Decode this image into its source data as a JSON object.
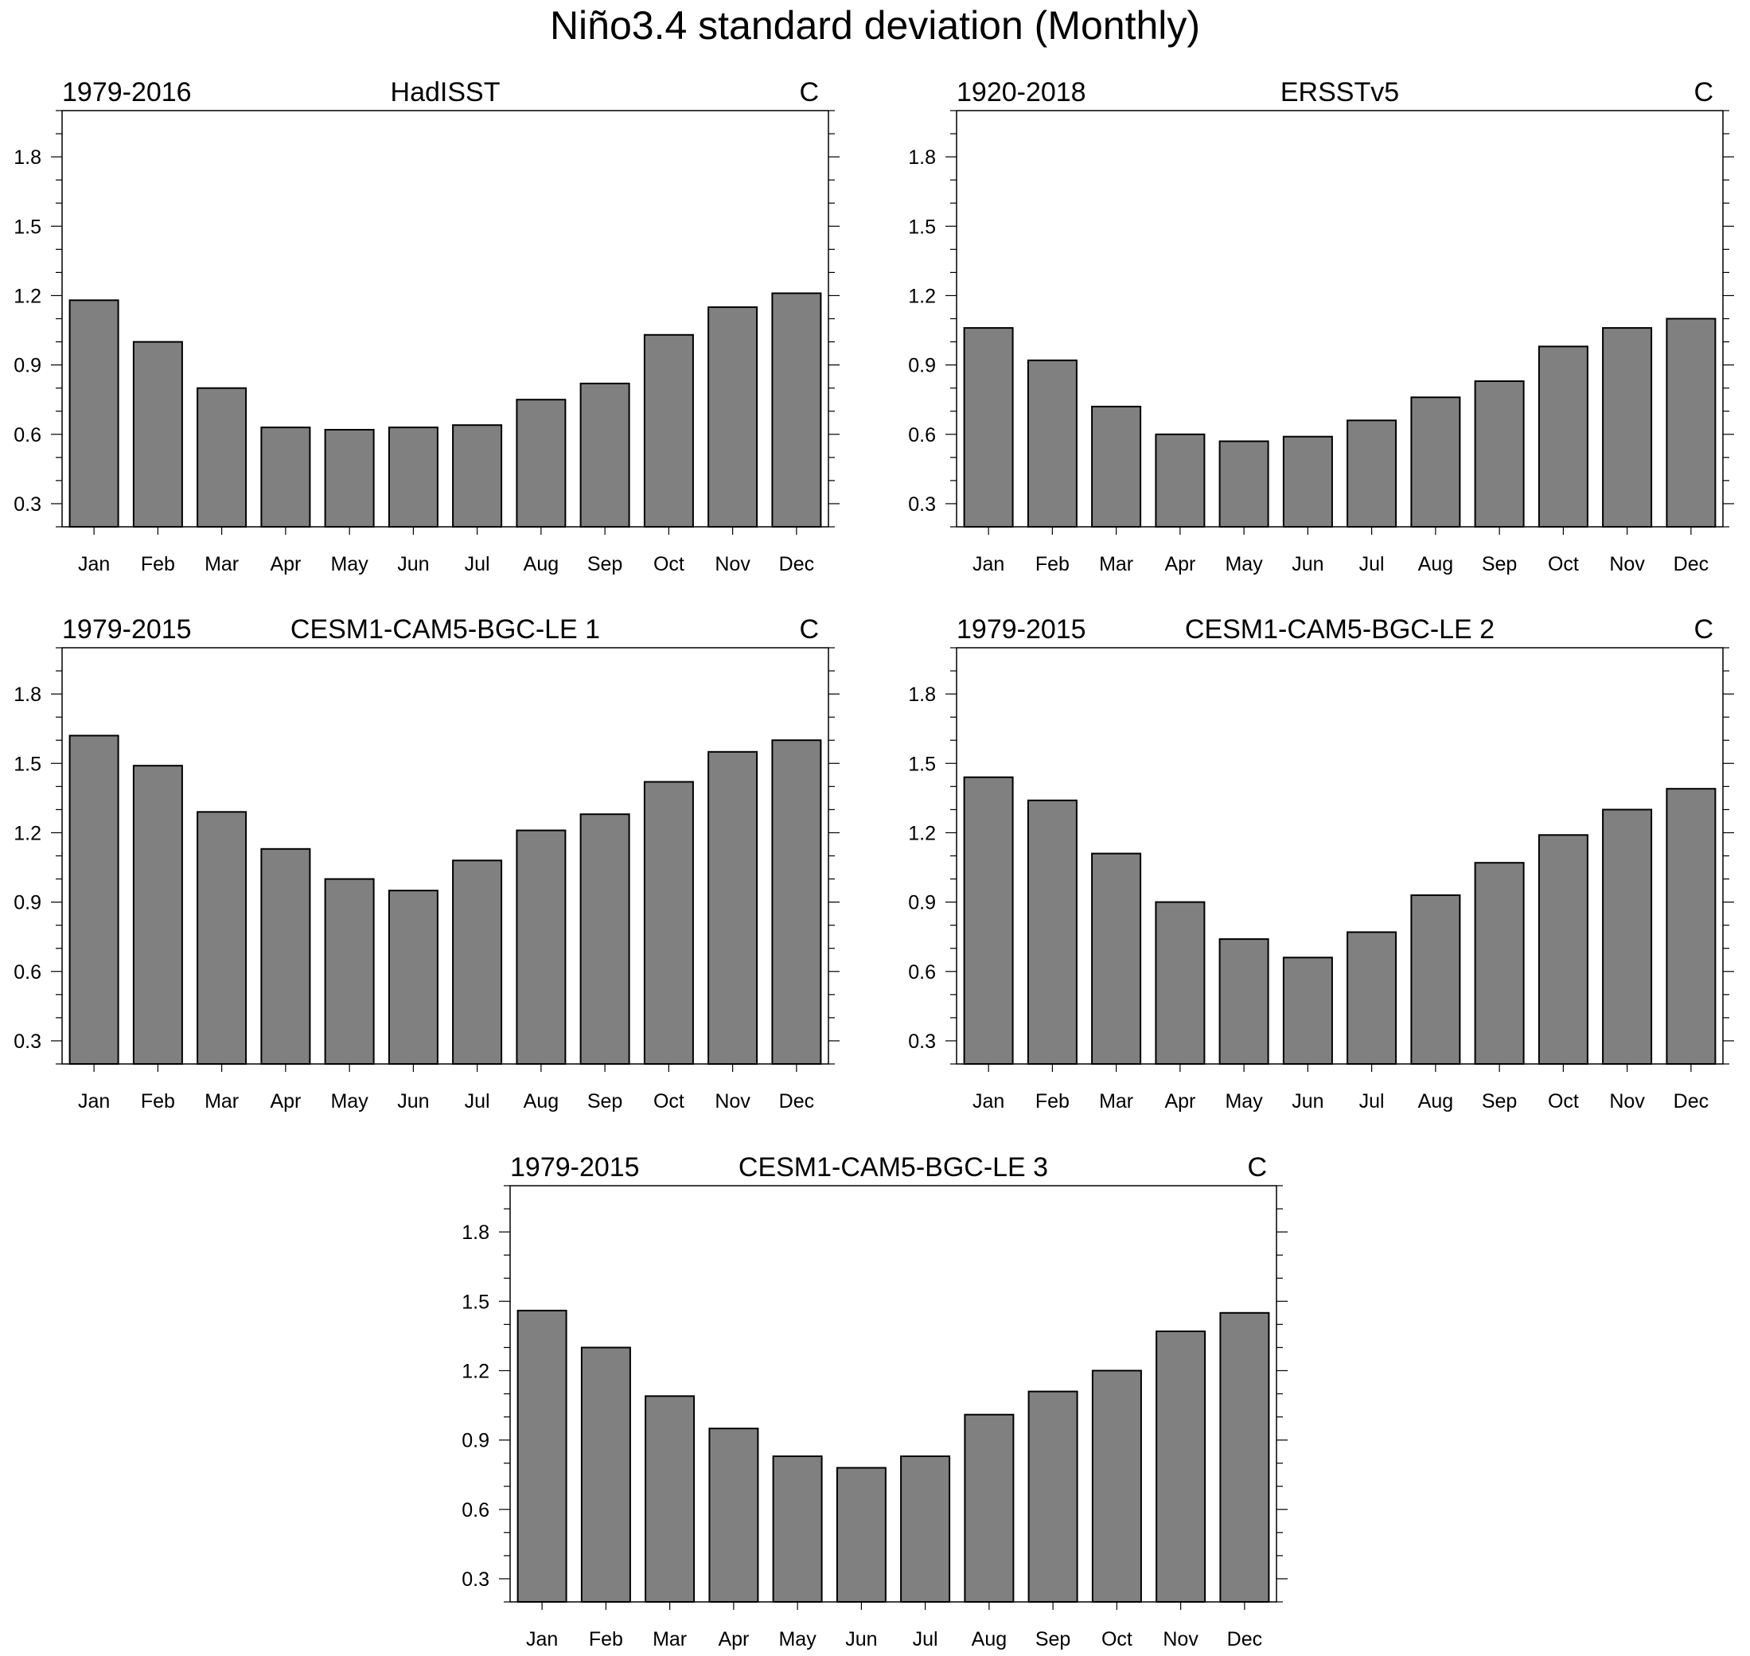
{
  "figure": {
    "title": "Niño3.4 standard deviation (Monthly)"
  },
  "style": {
    "bar_fill": "#808080",
    "bar_stroke": "#000000",
    "background": "#ffffff"
  },
  "chart_data": [
    {
      "type": "bar",
      "title": "HadISST",
      "period": "1979-2016",
      "units": "C",
      "categories": [
        "Jan",
        "Feb",
        "Mar",
        "Apr",
        "May",
        "Jun",
        "Jul",
        "Aug",
        "Sep",
        "Oct",
        "Nov",
        "Dec"
      ],
      "values": [
        1.18,
        1.0,
        0.8,
        0.63,
        0.62,
        0.63,
        0.64,
        0.75,
        0.82,
        1.03,
        1.15,
        1.21
      ],
      "ylim": [
        0.2,
        2.0
      ],
      "yticks": [
        0.3,
        0.6,
        0.9,
        1.2,
        1.5,
        1.8
      ],
      "grid": false
    },
    {
      "type": "bar",
      "title": "ERSSTv5",
      "period": "1920-2018",
      "units": "C",
      "categories": [
        "Jan",
        "Feb",
        "Mar",
        "Apr",
        "May",
        "Jun",
        "Jul",
        "Aug",
        "Sep",
        "Oct",
        "Nov",
        "Dec"
      ],
      "values": [
        1.06,
        0.92,
        0.72,
        0.6,
        0.57,
        0.59,
        0.66,
        0.76,
        0.83,
        0.98,
        1.06,
        1.1
      ],
      "ylim": [
        0.2,
        2.0
      ],
      "yticks": [
        0.3,
        0.6,
        0.9,
        1.2,
        1.5,
        1.8
      ],
      "grid": false
    },
    {
      "type": "bar",
      "title": "CESM1-CAM5-BGC-LE 1",
      "period": "1979-2015",
      "units": "C",
      "categories": [
        "Jan",
        "Feb",
        "Mar",
        "Apr",
        "May",
        "Jun",
        "Jul",
        "Aug",
        "Sep",
        "Oct",
        "Nov",
        "Dec"
      ],
      "values": [
        1.62,
        1.49,
        1.29,
        1.13,
        1.0,
        0.95,
        1.08,
        1.21,
        1.28,
        1.42,
        1.55,
        1.6
      ],
      "ylim": [
        0.2,
        2.0
      ],
      "yticks": [
        0.3,
        0.6,
        0.9,
        1.2,
        1.5,
        1.8
      ],
      "grid": false
    },
    {
      "type": "bar",
      "title": "CESM1-CAM5-BGC-LE 2",
      "period": "1979-2015",
      "units": "C",
      "categories": [
        "Jan",
        "Feb",
        "Mar",
        "Apr",
        "May",
        "Jun",
        "Jul",
        "Aug",
        "Sep",
        "Oct",
        "Nov",
        "Dec"
      ],
      "values": [
        1.44,
        1.34,
        1.11,
        0.9,
        0.74,
        0.66,
        0.77,
        0.93,
        1.07,
        1.19,
        1.3,
        1.39
      ],
      "ylim": [
        0.2,
        2.0
      ],
      "yticks": [
        0.3,
        0.6,
        0.9,
        1.2,
        1.5,
        1.8
      ],
      "grid": false
    },
    {
      "type": "bar",
      "title": "CESM1-CAM5-BGC-LE 3",
      "period": "1979-2015",
      "units": "C",
      "categories": [
        "Jan",
        "Feb",
        "Mar",
        "Apr",
        "May",
        "Jun",
        "Jul",
        "Aug",
        "Sep",
        "Oct",
        "Nov",
        "Dec"
      ],
      "values": [
        1.46,
        1.3,
        1.09,
        0.95,
        0.83,
        0.78,
        0.83,
        1.01,
        1.11,
        1.2,
        1.37,
        1.45
      ],
      "ylim": [
        0.2,
        2.0
      ],
      "yticks": [
        0.3,
        0.6,
        0.9,
        1.2,
        1.5,
        1.8
      ],
      "grid": false
    }
  ]
}
